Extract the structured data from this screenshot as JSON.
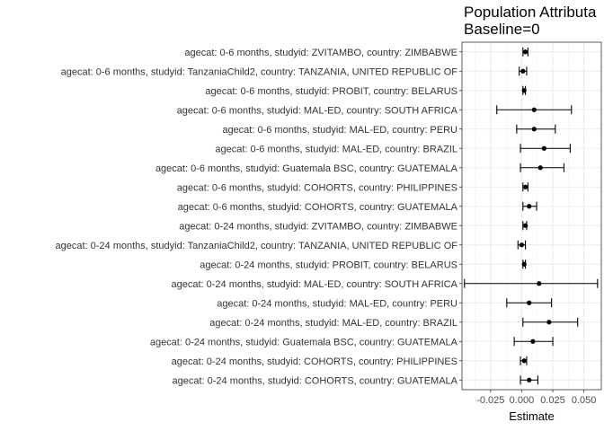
{
  "chart_data": {
    "type": "forest",
    "title": "Population Attributa",
    "subtitle": "Baseline=0",
    "xlabel": "Estimate",
    "ylabel": "",
    "xlim": [
      -0.048,
      0.064
    ],
    "xticks": [
      -0.025,
      0.0,
      0.025,
      0.05
    ],
    "xtick_labels": [
      "-0.025",
      "0.000",
      "0.025",
      "0.050"
    ],
    "grid": true,
    "rows": [
      {
        "label": "agecat: 0-6 months, studyid: ZVITAMBO, country: ZIMBABWE",
        "estimate": 0.003,
        "lower": 0.001,
        "upper": 0.005
      },
      {
        "label": "agecat: 0-6 months, studyid: TanzaniaChild2, country: TANZANIA, UNITED REPUBLIC OF",
        "estimate": 0.001,
        "lower": -0.002,
        "upper": 0.004
      },
      {
        "label": "agecat: 0-6 months, studyid: PROBIT, country: BELARUS",
        "estimate": 0.002,
        "lower": 0.001,
        "upper": 0.003
      },
      {
        "label": "agecat: 0-6 months, studyid: MAL-ED, country: SOUTH AFRICA",
        "estimate": 0.01,
        "lower": -0.02,
        "upper": 0.04
      },
      {
        "label": "agecat: 0-6 months, studyid: MAL-ED, country: PERU",
        "estimate": 0.01,
        "lower": -0.004,
        "upper": 0.027
      },
      {
        "label": "agecat: 0-6 months, studyid: MAL-ED, country: BRAZIL",
        "estimate": 0.018,
        "lower": -0.001,
        "upper": 0.039
      },
      {
        "label": "agecat: 0-6 months, studyid: Guatemala BSC, country: GUATEMALA",
        "estimate": 0.015,
        "lower": -0.001,
        "upper": 0.034
      },
      {
        "label": "agecat: 0-6 months, studyid: COHORTS, country: PHILIPPINES",
        "estimate": 0.003,
        "lower": 0.001,
        "upper": 0.005
      },
      {
        "label": "agecat: 0-6 months, studyid: COHORTS, country: GUATEMALA",
        "estimate": 0.006,
        "lower": 0.001,
        "upper": 0.012
      },
      {
        "label": "agecat: 0-24 months, studyid: ZVITAMBO, country: ZIMBABWE",
        "estimate": 0.003,
        "lower": 0.001,
        "upper": 0.004
      },
      {
        "label": "agecat: 0-24 months, studyid: TanzaniaChild2, country: TANZANIA, UNITED REPUBLIC OF",
        "estimate": 0.0,
        "lower": -0.003,
        "upper": 0.003
      },
      {
        "label": "agecat: 0-24 months, studyid: PROBIT, country: BELARUS",
        "estimate": 0.002,
        "lower": 0.001,
        "upper": 0.003
      },
      {
        "label": "agecat: 0-24 months, studyid: MAL-ED, country: SOUTH AFRICA",
        "estimate": 0.014,
        "lower": -0.046,
        "upper": 0.061
      },
      {
        "label": "agecat: 0-24 months, studyid: MAL-ED, country: PERU",
        "estimate": 0.006,
        "lower": -0.012,
        "upper": 0.024
      },
      {
        "label": "agecat: 0-24 months, studyid: MAL-ED, country: BRAZIL",
        "estimate": 0.022,
        "lower": 0.001,
        "upper": 0.045
      },
      {
        "label": "agecat: 0-24 months, studyid: Guatemala BSC, country: GUATEMALA",
        "estimate": 0.009,
        "lower": -0.006,
        "upper": 0.025
      },
      {
        "label": "agecat: 0-24 months, studyid: COHORTS, country: PHILIPPINES",
        "estimate": 0.002,
        "lower": -0.001,
        "upper": 0.004
      },
      {
        "label": "agecat: 0-24 months, studyid: COHORTS, country: GUATEMALA",
        "estimate": 0.006,
        "lower": -0.001,
        "upper": 0.013
      }
    ]
  }
}
